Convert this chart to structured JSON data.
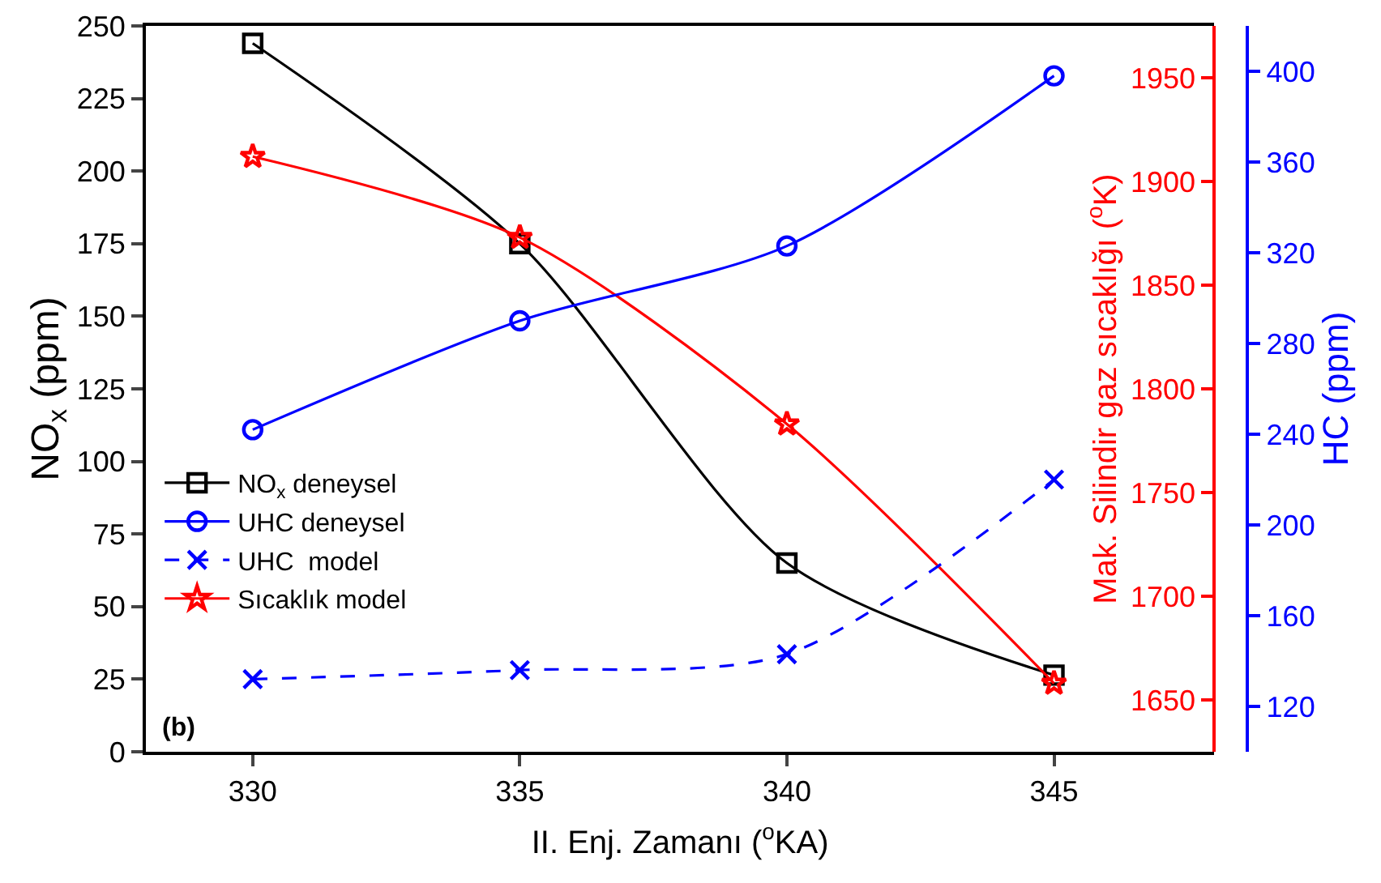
{
  "chart_data": {
    "type": "line",
    "xlabel": "II. Enj. Zamanı ($^{o}$KA)",
    "ylabel": "NO$_{x}$ (ppm)",
    "y2label": "Mak. Silindir gaz sıcaklığı ($^{o}$K)",
    "y3label": "HC (ppm)",
    "x": [
      330,
      335,
      340,
      345
    ],
    "xlim": [
      328,
      348
    ],
    "xticks": [
      330,
      335,
      340,
      345
    ],
    "ylim": [
      0,
      250
    ],
    "yticks": [
      0,
      25,
      50,
      75,
      100,
      125,
      150,
      175,
      200,
      225,
      250
    ],
    "y2lim": [
      1625,
      1975
    ],
    "y2ticks": [
      1650,
      1700,
      1750,
      1800,
      1850,
      1900,
      1950
    ],
    "y3lim": [
      100,
      420
    ],
    "y3ticks": [
      120,
      160,
      200,
      240,
      280,
      320,
      360,
      400
    ],
    "series": [
      {
        "name": "NO$_{x}$ deneysel",
        "color": "#000000",
        "values": [
          244,
          175,
          65,
          26.4
        ],
        "marker": "square",
        "line_style": "solid"
      },
      {
        "name": "UHC deneysel",
        "color": "#0000ff",
        "values": [
          242,
          290,
          323,
          398
        ],
        "marker": "circle",
        "line_style": "solid",
        "axis": "y3"
      },
      {
        "name": "UHC  model",
        "color": "#0000ff",
        "values": [
          132,
          136,
          143,
          220
        ],
        "marker": "cross",
        "line_style": "dashed",
        "axis": "y3"
      },
      {
        "name": "Sıcaklık model",
        "color": "#ff0000",
        "values": [
          1912,
          1873,
          1783,
          1658
        ],
        "marker": "star",
        "line_style": "solid",
        "axis": "y2"
      }
    ],
    "annotations": [
      "(b)"
    ],
    "legend": "left"
  }
}
